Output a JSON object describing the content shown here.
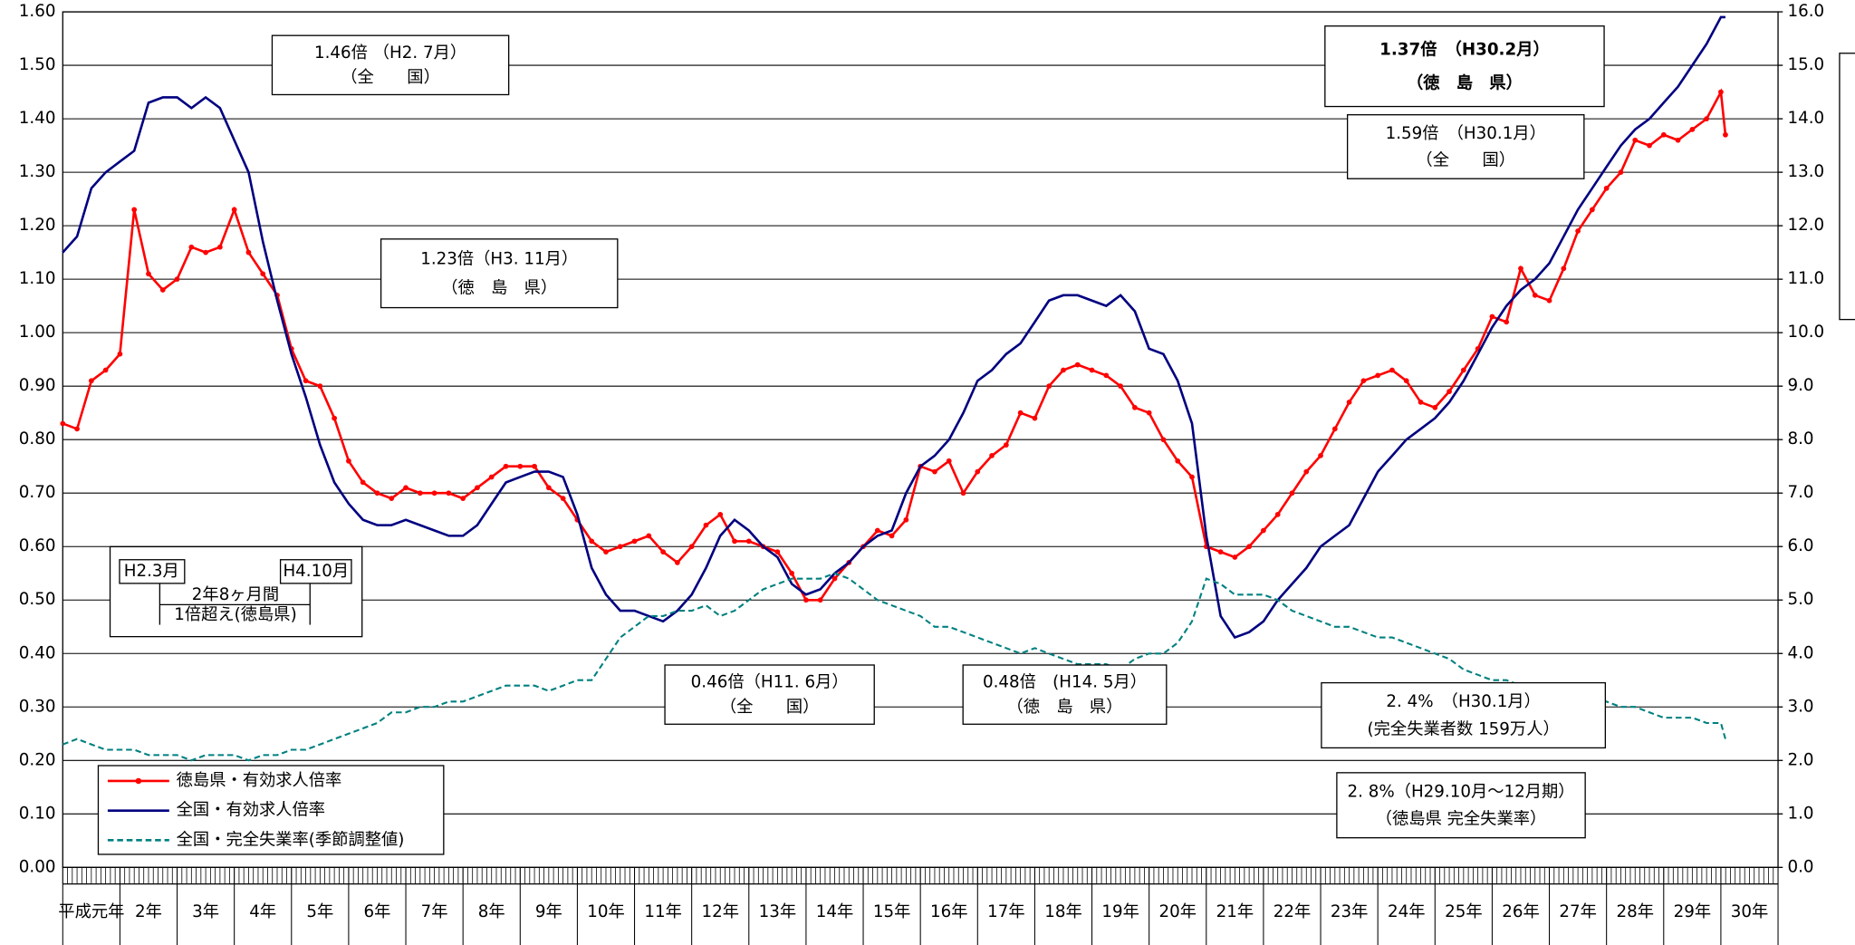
{
  "chart_data": {
    "type": "line",
    "categories": [
      "平成元年",
      "2年",
      "3年",
      "4年",
      "5年",
      "6年",
      "7年",
      "8年",
      "9年",
      "10年",
      "11年",
      "12年",
      "13年",
      "14年",
      "15年",
      "16年",
      "17年",
      "18年",
      "19年",
      "20年",
      "21年",
      "22年",
      "23年",
      "24年",
      "25年",
      "26年",
      "27年",
      "28年",
      "29年",
      "30年"
    ],
    "xlim": [
      0,
      30
    ],
    "x": [
      0,
      0.25,
      0.5,
      0.75,
      1,
      1.25,
      1.5,
      1.75,
      2,
      2.25,
      2.5,
      2.75,
      3,
      3.25,
      3.5,
      3.75,
      4,
      4.25,
      4.5,
      4.75,
      5,
      5.25,
      5.5,
      5.75,
      6,
      6.25,
      6.5,
      6.75,
      7,
      7.25,
      7.5,
      7.75,
      8,
      8.25,
      8.5,
      8.75,
      9,
      9.25,
      9.5,
      9.75,
      10,
      10.25,
      10.5,
      10.75,
      11,
      11.25,
      11.5,
      11.75,
      12,
      12.25,
      12.5,
      12.75,
      13,
      13.25,
      13.5,
      13.75,
      14,
      14.25,
      14.5,
      14.75,
      15,
      15.25,
      15.5,
      15.75,
      16,
      16.25,
      16.5,
      16.75,
      17,
      17.25,
      17.5,
      17.75,
      18,
      18.25,
      18.5,
      18.75,
      19,
      19.25,
      19.5,
      19.75,
      20,
      20.25,
      20.5,
      20.75,
      21,
      21.25,
      21.5,
      21.75,
      22,
      22.25,
      22.5,
      22.75,
      23,
      23.25,
      23.5,
      23.75,
      24,
      24.25,
      24.5,
      24.75,
      25,
      25.25,
      25.5,
      25.75,
      26,
      26.25,
      26.5,
      26.75,
      27,
      27.25,
      27.5,
      27.75,
      28,
      28.25,
      28.5,
      28.75,
      29,
      29.08
    ],
    "ylim": [
      0,
      1.6
    ],
    "yticks": [
      {
        "value": 0,
        "label": "0.00"
      },
      {
        "value": 0.1,
        "label": "0.10"
      },
      {
        "value": 0.2,
        "label": "0.20"
      },
      {
        "value": 0.3,
        "label": "0.30"
      },
      {
        "value": 0.4,
        "label": "0.40"
      },
      {
        "value": 0.5,
        "label": "0.50"
      },
      {
        "value": 0.6,
        "label": "0.60"
      },
      {
        "value": 0.7,
        "label": "0.70"
      },
      {
        "value": 0.8,
        "label": "0.80"
      },
      {
        "value": 0.9,
        "label": "0.90"
      },
      {
        "value": 1.0,
        "label": "1.00"
      },
      {
        "value": 1.1,
        "label": "1.10"
      },
      {
        "value": 1.2,
        "label": "1.20"
      },
      {
        "value": 1.3,
        "label": "1.30"
      },
      {
        "value": 1.4,
        "label": "1.40"
      },
      {
        "value": 1.5,
        "label": "1.50"
      },
      {
        "value": 1.6,
        "label": "1.60"
      }
    ],
    "y2lim": [
      0,
      16
    ],
    "y2ticks": [
      {
        "value": 0,
        "label": "0.0"
      },
      {
        "value": 1,
        "label": "1.0"
      },
      {
        "value": 2,
        "label": "2.0"
      },
      {
        "value": 3,
        "label": "3.0"
      },
      {
        "value": 4,
        "label": "4.0"
      },
      {
        "value": 5,
        "label": "5.0"
      },
      {
        "value": 6,
        "label": "6.0"
      },
      {
        "value": 7,
        "label": "7.0"
      },
      {
        "value": 8,
        "label": "8.0"
      },
      {
        "value": 9,
        "label": "9.0"
      },
      {
        "value": 10,
        "label": "10.0"
      },
      {
        "value": 11,
        "label": "11.0"
      },
      {
        "value": 12,
        "label": "12.0"
      },
      {
        "value": 13,
        "label": "13.0"
      },
      {
        "value": 14,
        "label": "14.0"
      },
      {
        "value": 15,
        "label": "15.0"
      },
      {
        "value": 16,
        "label": "16.0"
      }
    ],
    "grid": true,
    "legend": "lower-left",
    "series": [
      {
        "name": "徳島県・有効求人倍率",
        "color": "#ff0000",
        "markers": true,
        "values": [
          0.83,
          0.82,
          0.91,
          0.93,
          0.96,
          1.23,
          1.11,
          1.08,
          1.1,
          1.16,
          1.15,
          1.16,
          1.23,
          1.15,
          1.11,
          1.07,
          0.97,
          0.91,
          0.9,
          0.84,
          0.76,
          0.72,
          0.7,
          0.69,
          0.71,
          0.7,
          0.7,
          0.7,
          0.69,
          0.71,
          0.73,
          0.75,
          0.75,
          0.75,
          0.71,
          0.69,
          0.65,
          0.61,
          0.59,
          0.6,
          0.61,
          0.62,
          0.59,
          0.57,
          0.6,
          0.64,
          0.66,
          0.61,
          0.61,
          0.6,
          0.59,
          0.55,
          0.5,
          0.5,
          0.54,
          0.57,
          0.6,
          0.63,
          0.62,
          0.65,
          0.75,
          0.74,
          0.76,
          0.7,
          0.74,
          0.77,
          0.79,
          0.85,
          0.84,
          0.9,
          0.93,
          0.94,
          0.93,
          0.92,
          0.9,
          0.86,
          0.85,
          0.8,
          0.76,
          0.73,
          0.6,
          0.59,
          0.58,
          0.6,
          0.63,
          0.66,
          0.7,
          0.74,
          0.77,
          0.82,
          0.87,
          0.91,
          0.92,
          0.93,
          0.91,
          0.87,
          0.86,
          0.89,
          0.93,
          0.97,
          1.03,
          1.02,
          1.12,
          1.07,
          1.06,
          1.12,
          1.19,
          1.23,
          1.27,
          1.3,
          1.36,
          1.35,
          1.37,
          1.36,
          1.38,
          1.4,
          1.45,
          1.37
        ]
      },
      {
        "name": "全国・有効求人倍率",
        "color": "#000080",
        "markers": false,
        "values": [
          1.15,
          1.18,
          1.27,
          1.3,
          1.32,
          1.34,
          1.43,
          1.44,
          1.44,
          1.42,
          1.44,
          1.42,
          1.36,
          1.3,
          1.17,
          1.06,
          0.96,
          0.88,
          0.79,
          0.72,
          0.68,
          0.65,
          0.64,
          0.64,
          0.65,
          0.64,
          0.63,
          0.62,
          0.62,
          0.64,
          0.68,
          0.72,
          0.73,
          0.74,
          0.74,
          0.73,
          0.66,
          0.56,
          0.51,
          0.48,
          0.48,
          0.47,
          0.46,
          0.48,
          0.51,
          0.56,
          0.62,
          0.65,
          0.63,
          0.6,
          0.58,
          0.53,
          0.51,
          0.52,
          0.55,
          0.57,
          0.6,
          0.62,
          0.63,
          0.7,
          0.75,
          0.77,
          0.8,
          0.85,
          0.91,
          0.93,
          0.96,
          0.98,
          1.02,
          1.06,
          1.07,
          1.07,
          1.06,
          1.05,
          1.07,
          1.04,
          0.97,
          0.96,
          0.91,
          0.83,
          0.62,
          0.47,
          0.43,
          0.44,
          0.46,
          0.5,
          0.53,
          0.56,
          0.6,
          0.62,
          0.64,
          0.69,
          0.74,
          0.77,
          0.8,
          0.82,
          0.84,
          0.87,
          0.91,
          0.96,
          1.01,
          1.05,
          1.08,
          1.1,
          1.13,
          1.18,
          1.23,
          1.27,
          1.31,
          1.35,
          1.38,
          1.4,
          1.43,
          1.46,
          1.5,
          1.54,
          1.59,
          1.59
        ]
      },
      {
        "name": "全国・完全失業率(季節調整値)",
        "color": "#008080",
        "dashed": true,
        "axis": "y2",
        "values": [
          2.3,
          2.4,
          2.3,
          2.2,
          2.2,
          2.2,
          2.1,
          2.1,
          2.1,
          2.0,
          2.1,
          2.1,
          2.1,
          2.0,
          2.1,
          2.1,
          2.2,
          2.2,
          2.3,
          2.4,
          2.5,
          2.6,
          2.7,
          2.9,
          2.9,
          3.0,
          3.0,
          3.1,
          3.1,
          3.2,
          3.3,
          3.4,
          3.4,
          3.4,
          3.3,
          3.4,
          3.5,
          3.5,
          3.9,
          4.3,
          4.5,
          4.7,
          4.7,
          4.8,
          4.8,
          4.9,
          4.7,
          4.8,
          5.0,
          5.2,
          5.3,
          5.4,
          5.4,
          5.4,
          5.5,
          5.4,
          5.2,
          5.0,
          4.9,
          4.8,
          4.7,
          4.5,
          4.5,
          4.4,
          4.3,
          4.2,
          4.1,
          4.0,
          4.1,
          4.0,
          3.9,
          3.8,
          3.8,
          3.8,
          3.7,
          3.9,
          4.0,
          4.0,
          4.2,
          4.6,
          5.4,
          5.3,
          5.1,
          5.1,
          5.1,
          5.0,
          4.8,
          4.7,
          4.6,
          4.5,
          4.5,
          4.4,
          4.3,
          4.3,
          4.2,
          4.1,
          4.0,
          3.9,
          3.7,
          3.6,
          3.5,
          3.5,
          3.4,
          3.3,
          3.3,
          3.2,
          3.1,
          3.1,
          3.1,
          3.0,
          3.0,
          2.9,
          2.8,
          2.8,
          2.8,
          2.7,
          2.7,
          2.4
        ]
      }
    ],
    "annotations": [
      {
        "lines": [
          "1.46倍 （H2. 7月）",
          "（全　　国）"
        ]
      },
      {
        "lines": [
          "1.23倍（H3. 11月）",
          "（徳　島　県）"
        ]
      },
      {
        "lines": [
          "1.37倍　（H30.2月）",
          "（徳　島　県）"
        ]
      },
      {
        "lines": [
          "1.59倍　（H30.1月）",
          "（全　　国）"
        ]
      },
      {
        "lines": [
          "0.46倍（H11. 6月）",
          "（全　　国）"
        ]
      },
      {
        "lines": [
          "0.48倍　(H14. 5月）",
          "（徳　島　県）"
        ]
      },
      {
        "lines": [
          "2. 4%　（H30.1月）",
          "(完全失業者数 159万人）"
        ]
      },
      {
        "lines": [
          "2. 8%（H29.10月～12月期）",
          "（徳島県 完全失業率）"
        ]
      }
    ],
    "bracket": {
      "start": "H2.3月",
      "end": "H4.10月",
      "duration": "2年8ヶ月間",
      "note": "1倍超え(徳島県)"
    }
  }
}
